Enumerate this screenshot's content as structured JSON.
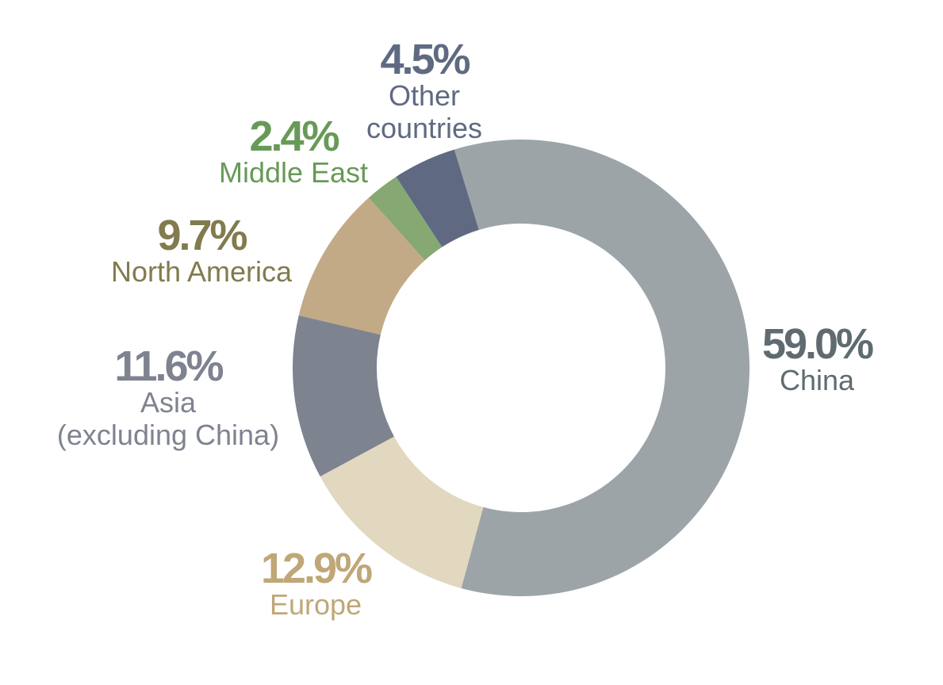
{
  "chart_data": {
    "type": "pie",
    "variant": "donut",
    "title": "",
    "legend": "none",
    "slices": [
      {
        "value": 59.0,
        "percent_label": "59.0%",
        "name_lines": [
          "China"
        ],
        "color": "#9ca4a8",
        "label_color": "#5f6b70"
      },
      {
        "value": 12.9,
        "percent_label": "12.9%",
        "name_lines": [
          "Europe"
        ],
        "color": "#e2d7bf",
        "label_color": "#bfa777"
      },
      {
        "value": 11.6,
        "percent_label": "11.6%",
        "name_lines": [
          "Asia",
          "(excluding China)"
        ],
        "color": "#7e8390",
        "label_color": "#7e8390"
      },
      {
        "value": 9.7,
        "percent_label": "9.7%",
        "name_lines": [
          "North America"
        ],
        "color": "#c2aa86",
        "label_color": "#817b4e"
      },
      {
        "value": 2.4,
        "percent_label": "2.4%",
        "name_lines": [
          "Middle East"
        ],
        "color": "#86a873",
        "label_color": "#679a57"
      },
      {
        "value": 4.5,
        "percent_label": "4.5%",
        "name_lines": [
          "Other",
          "countries"
        ],
        "color": "#5f6a82",
        "label_color": "#5f6a82"
      }
    ]
  }
}
